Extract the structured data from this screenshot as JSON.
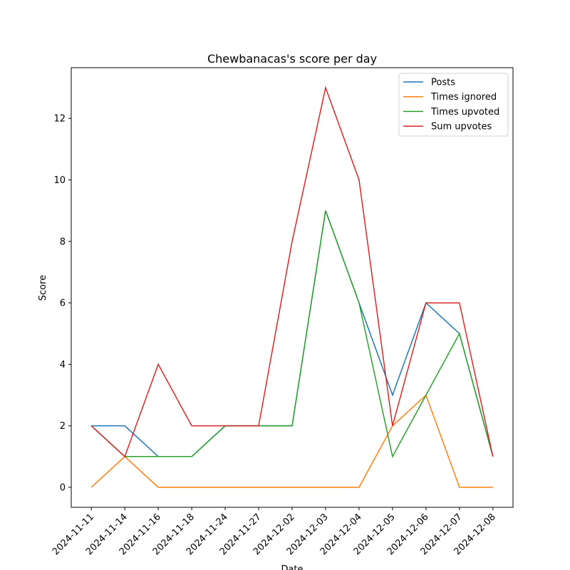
{
  "chart_data": {
    "type": "line",
    "title": "Chewbanacas's score per day",
    "x_label": "Date",
    "y_label": "Score",
    "categories": [
      "2024-11-11",
      "2024-11-14",
      "2024-11-16",
      "2024-11-18",
      "2024-11-24",
      "2024-11-27",
      "2024-12-02",
      "2024-12-03",
      "2024-12-04",
      "2024-12-05",
      "2024-12-06",
      "2024-12-07",
      "2024-12-08"
    ],
    "series": [
      {
        "name": "Posts",
        "color": "#1f77b4",
        "values": [
          2,
          2,
          1,
          1,
          2,
          2,
          2,
          9,
          6,
          3,
          6,
          5,
          1
        ]
      },
      {
        "name": "Times ignored",
        "color": "#ff7f0e",
        "values": [
          0,
          1,
          0,
          0,
          0,
          0,
          0,
          0,
          0,
          2,
          3,
          0,
          0
        ]
      },
      {
        "name": "Times upvoted",
        "color": "#2ca02c",
        "values": [
          2,
          1,
          1,
          1,
          2,
          2,
          2,
          9,
          6,
          1,
          3,
          5,
          1
        ]
      },
      {
        "name": "Sum upvotes",
        "color": "#d62728",
        "values": [
          2,
          1,
          4,
          2,
          2,
          2,
          8,
          13,
          10,
          2,
          6,
          6,
          1
        ]
      }
    ],
    "ylim": [
      -0.65,
      13.65
    ],
    "yticks": [
      0,
      2,
      4,
      6,
      8,
      10,
      12
    ],
    "grid": false,
    "legend": "upper right"
  }
}
